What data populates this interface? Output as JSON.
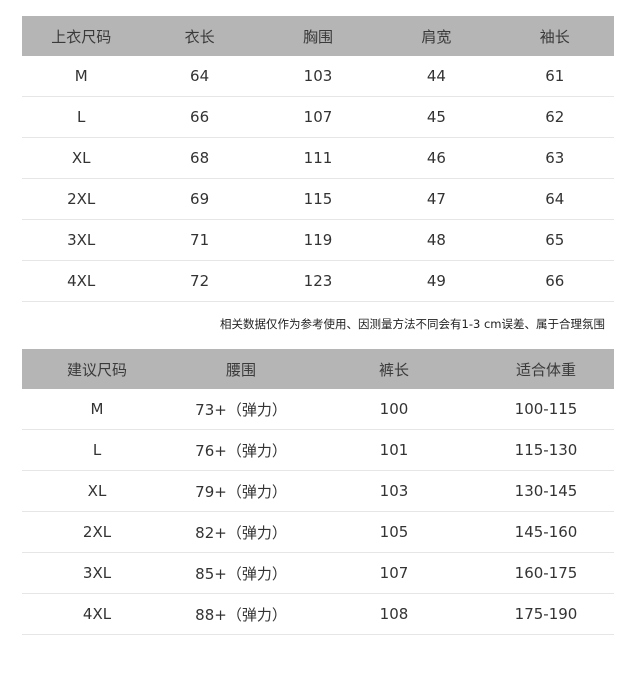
{
  "top_table": {
    "headers": [
      "上衣尺码",
      "衣长",
      "胸围",
      "肩宽",
      "袖长"
    ],
    "rows": [
      [
        "M",
        "64",
        "103",
        "44",
        "61"
      ],
      [
        "L",
        "66",
        "107",
        "45",
        "62"
      ],
      [
        "XL",
        "68",
        "111",
        "46",
        "63"
      ],
      [
        "2XL",
        "69",
        "115",
        "47",
        "64"
      ],
      [
        "3XL",
        "71",
        "119",
        "48",
        "65"
      ],
      [
        "4XL",
        "72",
        "123",
        "49",
        "66"
      ]
    ]
  },
  "note": "相关数据仅作为参考使用、因测量方法不同会有1-3 cm误差、属于合理氛围",
  "bottom_table": {
    "headers": [
      "建议尺码",
      "腰围",
      "裤长",
      "适合体重"
    ],
    "rows": [
      [
        "M",
        "73+（弹力）",
        "100",
        "100-115"
      ],
      [
        "L",
        "76+（弹力）",
        "101",
        "115-130"
      ],
      [
        "XL",
        "79+（弹力）",
        "103",
        "130-145"
      ],
      [
        "2XL",
        "82+（弹力）",
        "105",
        "145-160"
      ],
      [
        "3XL",
        "85+（弹力）",
        "107",
        "160-175"
      ],
      [
        "4XL",
        "88+（弹力）",
        "108",
        "175-190"
      ]
    ]
  },
  "colors": {
    "header_bg": "#b5b5b5",
    "row_divider": "#e6e6e6"
  }
}
